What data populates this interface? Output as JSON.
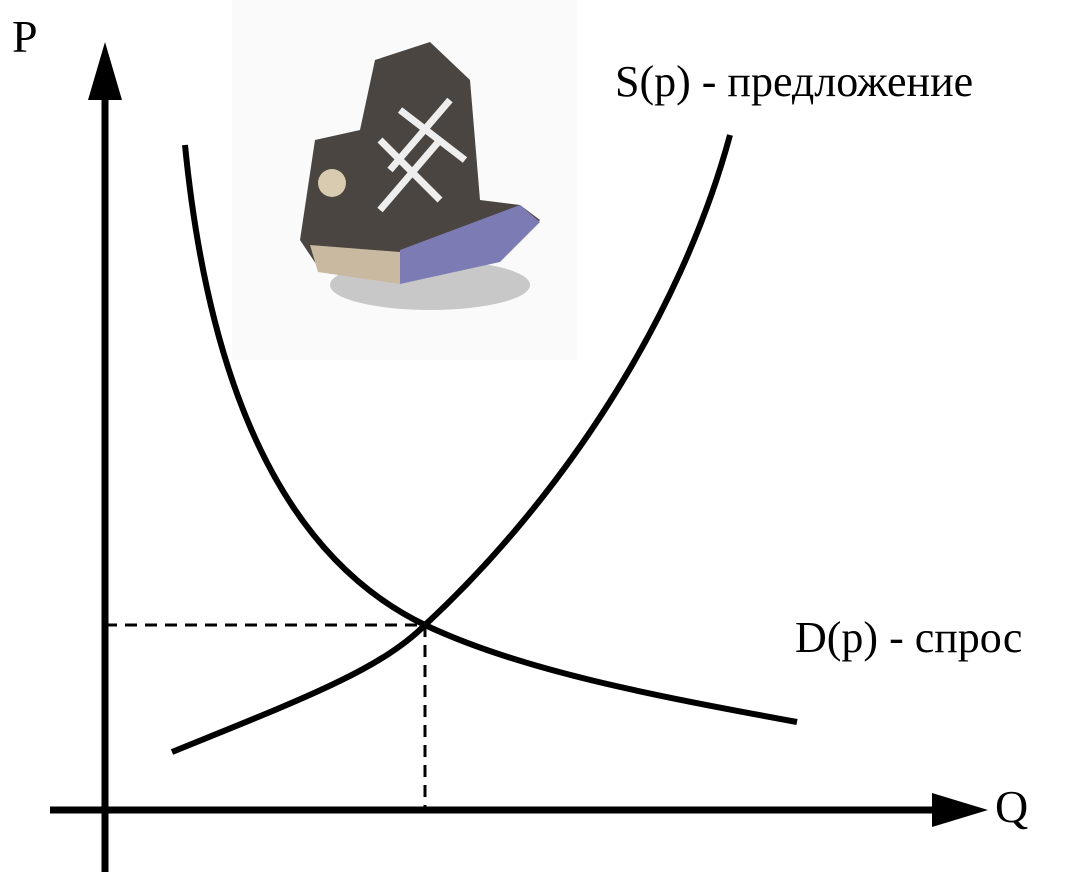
{
  "axes": {
    "y_label": "P",
    "x_label": "Q"
  },
  "curves": {
    "supply": "S(p) - предложение",
    "demand": "D(p) - спрос"
  }
}
